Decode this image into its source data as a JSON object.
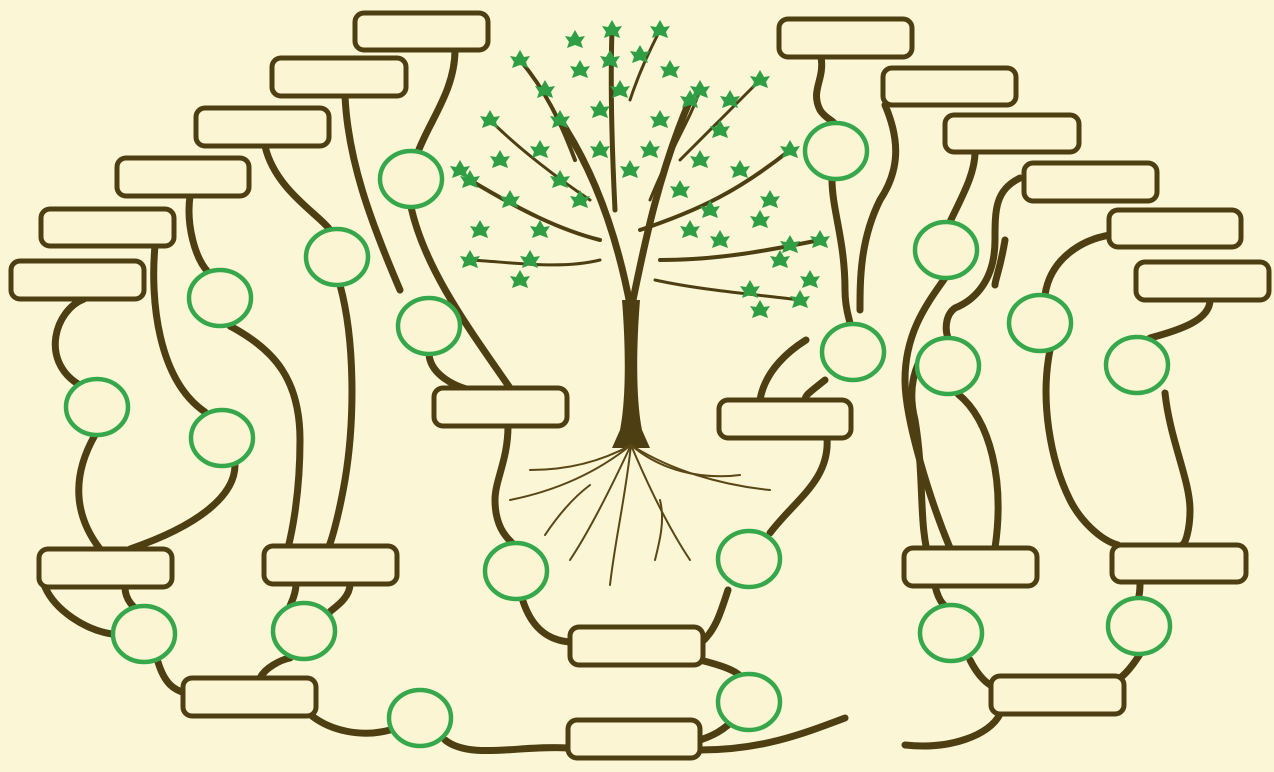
{
  "diagram": {
    "type": "family-tree-template",
    "colors": {
      "background": "#fbf6d6",
      "connector": "#4e3f12",
      "box_fill": "#fcf5d3",
      "oval_stroke": "#36a84b",
      "leaf": "#2f9e44"
    },
    "name_boxes": [
      {
        "id": "b1",
        "label": ""
      },
      {
        "id": "b2",
        "label": ""
      },
      {
        "id": "b3",
        "label": ""
      },
      {
        "id": "b4",
        "label": ""
      },
      {
        "id": "b5",
        "label": ""
      },
      {
        "id": "b6",
        "label": ""
      },
      {
        "id": "b7",
        "label": ""
      },
      {
        "id": "b8",
        "label": ""
      },
      {
        "id": "b9",
        "label": ""
      },
      {
        "id": "b10",
        "label": ""
      },
      {
        "id": "b11",
        "label": ""
      },
      {
        "id": "b12",
        "label": ""
      },
      {
        "id": "b13",
        "label": ""
      },
      {
        "id": "b14",
        "label": ""
      },
      {
        "id": "b15",
        "label": ""
      },
      {
        "id": "b16",
        "label": ""
      },
      {
        "id": "b17",
        "label": ""
      },
      {
        "id": "b18",
        "label": ""
      },
      {
        "id": "b19",
        "label": ""
      },
      {
        "id": "b20",
        "label": ""
      },
      {
        "id": "b21",
        "label": ""
      },
      {
        "id": "b22",
        "label": ""
      }
    ],
    "photo_ovals": [
      {
        "id": "o1"
      },
      {
        "id": "o2"
      },
      {
        "id": "o3"
      },
      {
        "id": "o4"
      },
      {
        "id": "o5"
      },
      {
        "id": "o6"
      },
      {
        "id": "o7"
      },
      {
        "id": "o8"
      },
      {
        "id": "o9"
      },
      {
        "id": "o10"
      },
      {
        "id": "o11"
      },
      {
        "id": "o12"
      },
      {
        "id": "o13"
      },
      {
        "id": "o14"
      },
      {
        "id": "o15"
      },
      {
        "id": "o16"
      },
      {
        "id": "o17"
      },
      {
        "id": "o18"
      },
      {
        "id": "o19"
      },
      {
        "id": "o20"
      }
    ]
  }
}
